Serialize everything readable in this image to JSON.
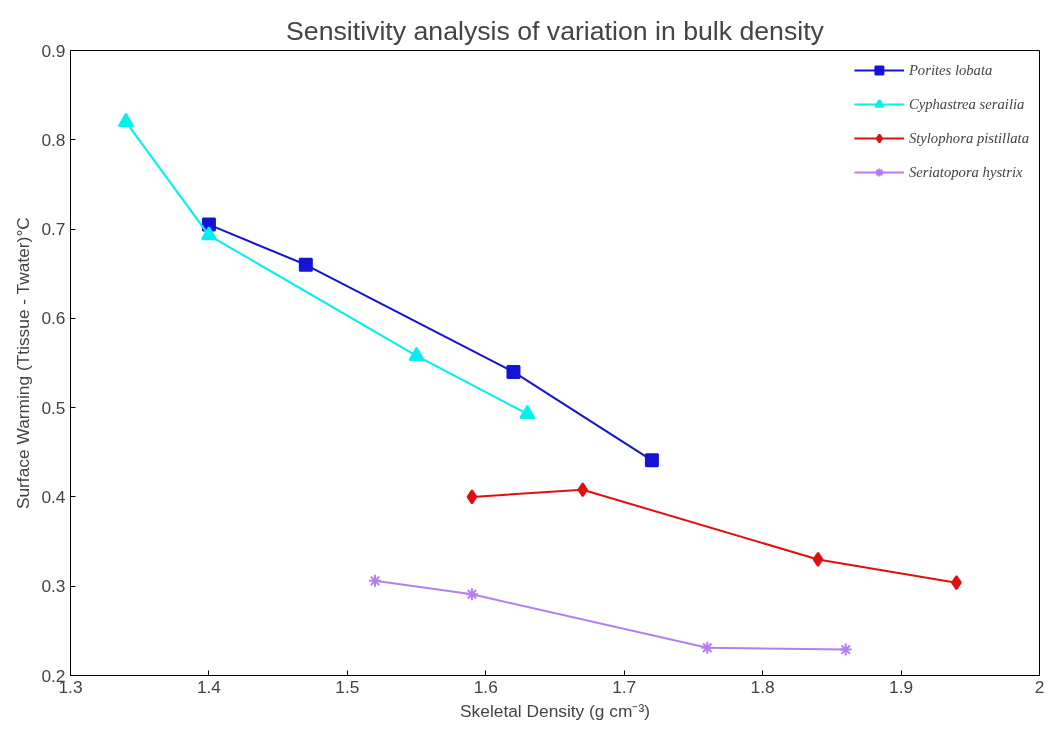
{
  "chart_data": {
    "type": "line",
    "title": "Sensitivity analysis of variation in bulk density",
    "xlabel": "Skeletal Density (g cm⁻³)",
    "ylabel": "Surface Warming (Ttissue - Twater)°C",
    "xlim": [
      1.3,
      2.0
    ],
    "xticks": [
      1.3,
      1.4,
      1.5,
      1.6,
      1.7,
      1.8,
      1.9,
      2
    ],
    "ylim": [
      0.2,
      0.9
    ],
    "yticks": [
      0.2,
      0.3,
      0.4,
      0.5,
      0.6,
      0.7,
      0.8,
      0.9
    ],
    "grid": false,
    "legend": "top right",
    "series": [
      {
        "name": "Porites lobata",
        "color": "#1414d2",
        "marker": "square",
        "x": [
          1.4,
          1.47,
          1.62,
          1.72
        ],
        "values": [
          0.705,
          0.66,
          0.54,
          0.441
        ]
      },
      {
        "name": "Cyphastrea serailia",
        "color": "#00f0f0",
        "marker": "triangle",
        "x": [
          1.34,
          1.4,
          1.55,
          1.63
        ],
        "values": [
          0.82,
          0.693,
          0.558,
          0.493
        ]
      },
      {
        "name": "Stylophora pistillata",
        "color": "#e01010",
        "marker": "diamond",
        "x": [
          1.59,
          1.67,
          1.84,
          1.94
        ],
        "values": [
          0.4,
          0.408,
          0.33,
          0.304
        ]
      },
      {
        "name": "Seriatopora hystrix",
        "color": "#b47ef0",
        "marker": "cross",
        "x": [
          1.52,
          1.59,
          1.76,
          1.86
        ],
        "values": [
          0.306,
          0.291,
          0.231,
          0.229
        ]
      }
    ]
  }
}
